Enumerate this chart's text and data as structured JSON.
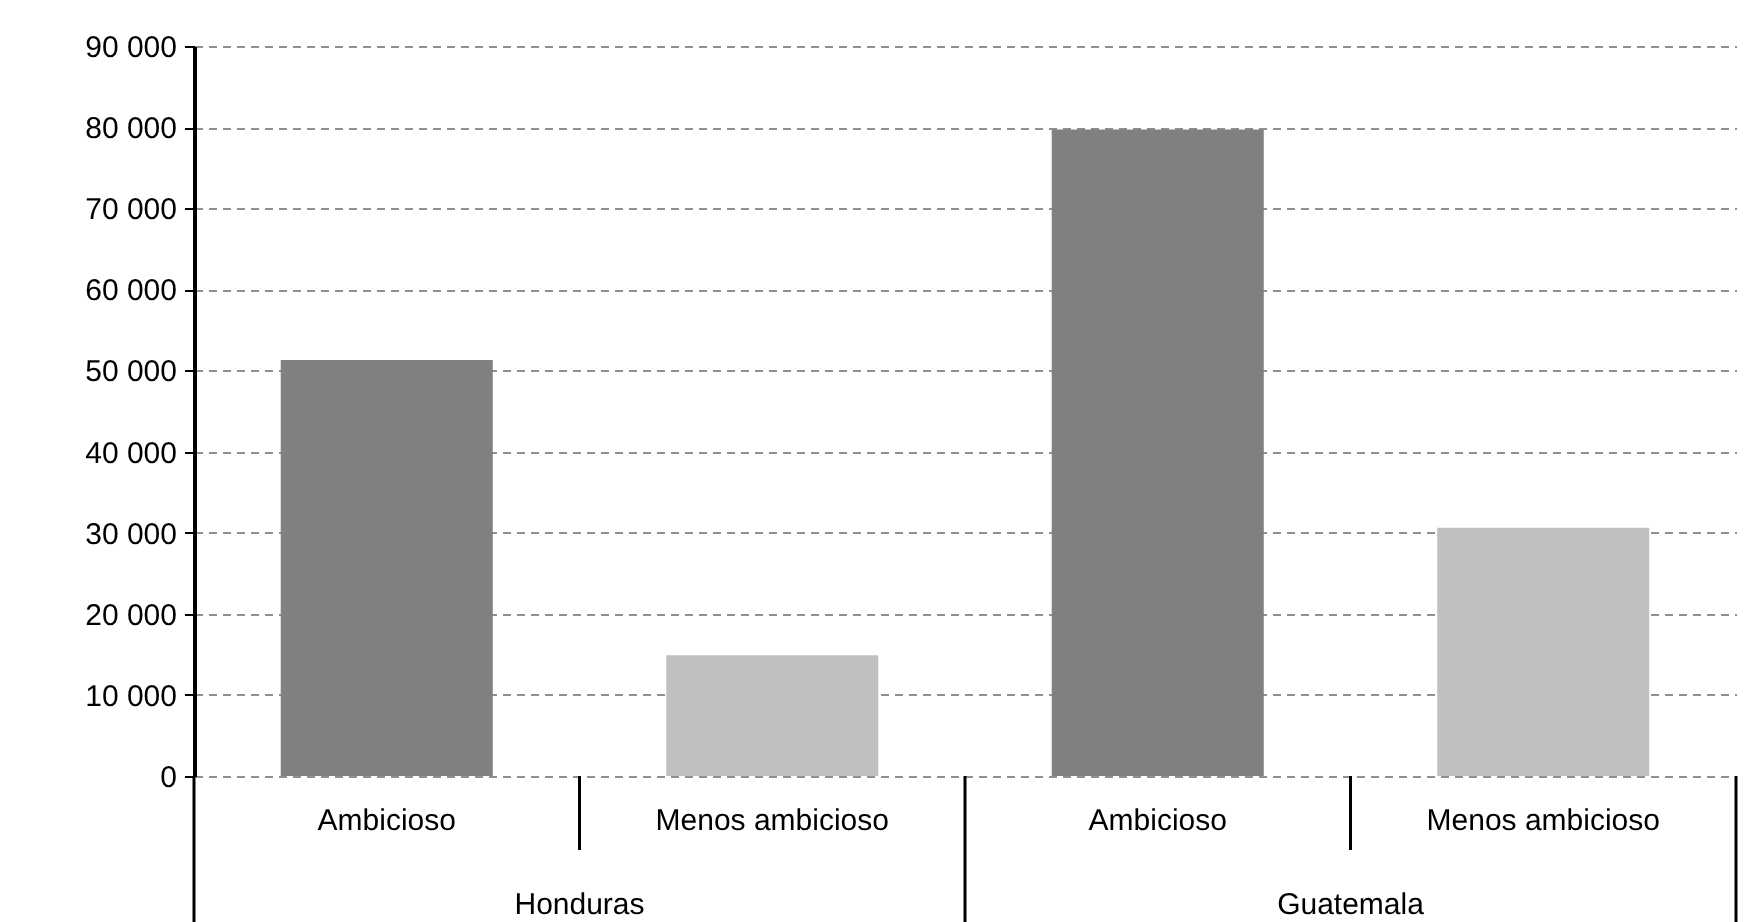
{
  "chart_data": {
    "type": "bar",
    "categories": [
      "Honduras",
      "Guatemala"
    ],
    "series": [
      {
        "name": "Ambicioso",
        "color": "#808080",
        "values": [
          51300,
          79700
        ]
      },
      {
        "name": "Menos ambicioso",
        "color": "#c0c0c0",
        "values": [
          14900,
          30600
        ]
      }
    ],
    "ylim": [
      0,
      90000
    ],
    "yticks": [
      0,
      10000,
      20000,
      30000,
      40000,
      50000,
      60000,
      70000,
      80000,
      90000
    ],
    "grid": "y"
  }
}
